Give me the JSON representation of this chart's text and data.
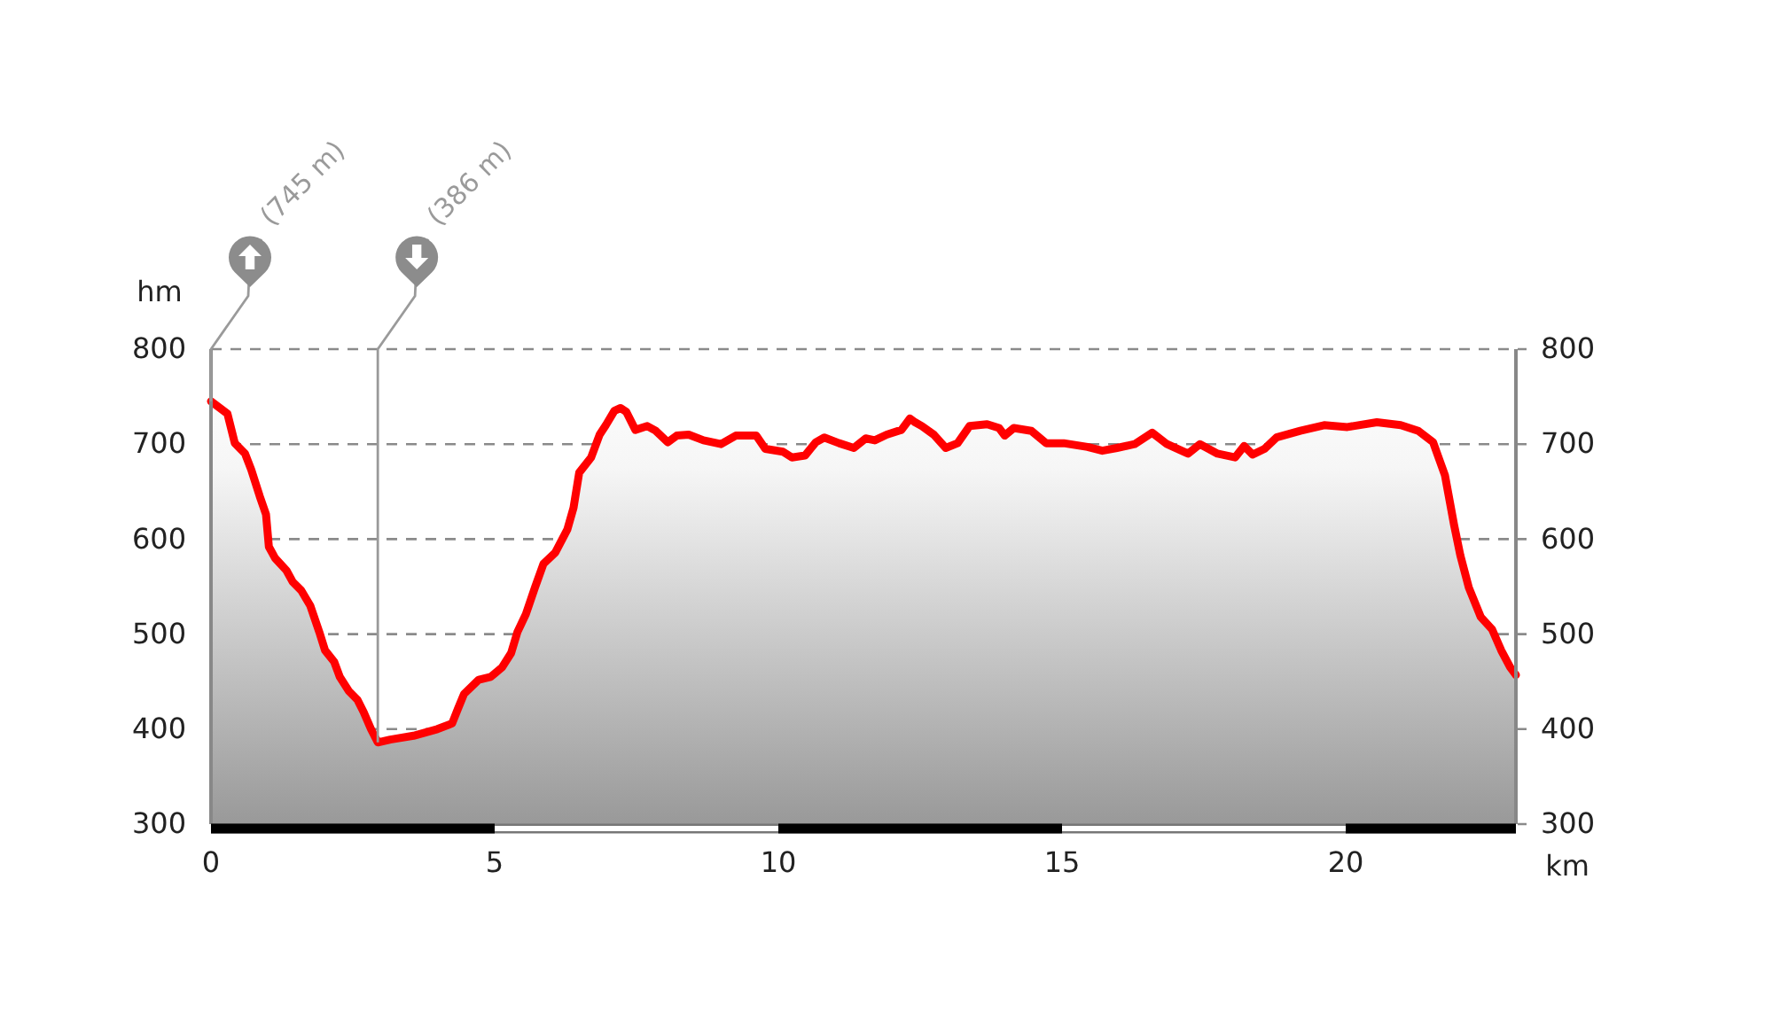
{
  "chart_data": {
    "type": "area",
    "xlabel": "km",
    "ylabel": "hm",
    "xlim": [
      0,
      23
    ],
    "xticks": [
      0,
      5,
      10,
      15,
      20
    ],
    "ylim": [
      300,
      800
    ],
    "yticks": [
      300,
      400,
      500,
      600,
      700,
      800
    ],
    "y2lim": [
      300,
      800
    ],
    "y2ticks": [
      300,
      400,
      500,
      600,
      700,
      800
    ],
    "grid": "y",
    "marker": "none",
    "line_style": "solid",
    "annotations": [
      {
        "text": "(745 m)",
        "x": 0,
        "y": 745
      },
      {
        "text": "(386 m)",
        "x": 2.94,
        "y": 386
      }
    ],
    "series": [
      {
        "color": "#ff0000",
        "x": [
          0,
          0.29,
          0.42,
          0.6,
          0.71,
          0.86,
          0.97,
          1.02,
          1.13,
          1.33,
          1.44,
          1.59,
          1.75,
          1.91,
          2.01,
          2.17,
          2.27,
          2.43,
          2.58,
          2.69,
          2.82,
          2.94,
          3.16,
          3.57,
          3.99,
          4.25,
          4.35,
          4.46,
          4.72,
          4.93,
          5.13,
          5.29,
          5.4,
          5.55,
          5.71,
          5.86,
          6.07,
          6.28,
          6.39,
          6.49,
          6.7,
          6.85,
          6.96,
          7.11,
          7.22,
          7.32,
          7.48,
          7.69,
          7.84,
          8.05,
          8.21,
          8.42,
          8.68,
          8.99,
          9.25,
          9.61,
          9.77,
          10.08,
          10.24,
          10.47,
          10.66,
          10.81,
          11.07,
          11.33,
          11.54,
          11.7,
          11.91,
          12.17,
          12.32,
          12.41,
          12.53,
          12.74,
          12.95,
          13.16,
          13.37,
          13.68,
          13.89,
          13.99,
          14.15,
          14.46,
          14.72,
          15.03,
          15.45,
          15.71,
          15.97,
          16.28,
          16.59,
          16.85,
          17.22,
          17.43,
          17.74,
          18.05,
          18.21,
          18.36,
          18.57,
          18.78,
          19.2,
          19.62,
          20.03,
          20.55,
          20.97,
          21.28,
          21.54,
          21.75,
          21.91,
          22.02,
          22.17,
          22.38,
          22.58,
          22.74,
          22.9,
          23
        ],
        "values": [
          745,
          732,
          701,
          690,
          673,
          645,
          626,
          592,
          580,
          567,
          555,
          546,
          530,
          502,
          483,
          471,
          455,
          440,
          431,
          418,
          400,
          386,
          389,
          393,
          400,
          406,
          421,
          437,
          452,
          455,
          465,
          480,
          502,
          521,
          549,
          574,
          586,
          610,
          633,
          670,
          686,
          710,
          720,
          735,
          738,
          734,
          715,
          719,
          714,
          702,
          709,
          710,
          704,
          700,
          709,
          709,
          695,
          692,
          686,
          688,
          702,
          707,
          701,
          696,
          706,
          704,
          710,
          715,
          727,
          723,
          719,
          710,
          696,
          701,
          719,
          721,
          717,
          709,
          717,
          714,
          701,
          701,
          697,
          693,
          696,
          700,
          712,
          700,
          690,
          700,
          690,
          686,
          698,
          689,
          695,
          707,
          714,
          720,
          718,
          723,
          720,
          714,
          702,
          667,
          615,
          583,
          549,
          518,
          505,
          483,
          465,
          457
        ]
      }
    ]
  }
}
